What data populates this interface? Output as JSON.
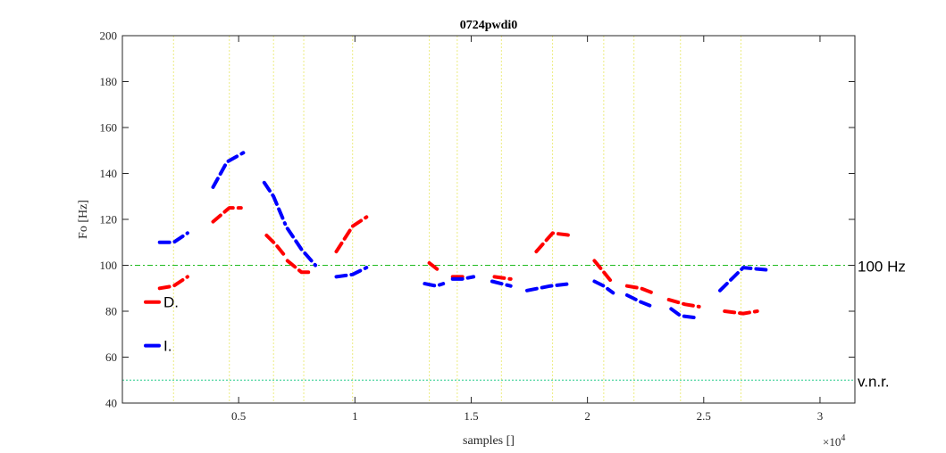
{
  "chart_data": {
    "type": "line",
    "title": "0724pwdi0",
    "xlabel": "samples []",
    "ylabel": "Fo [Hz]",
    "x_exponent_label": "×10",
    "x_exponent_power": "4",
    "xlim": [
      0,
      31500
    ],
    "ylim": [
      40,
      200
    ],
    "xticks": [
      5000,
      10000,
      15000,
      20000,
      25000,
      30000
    ],
    "xtick_labels": [
      "0.5",
      "1",
      "1.5",
      "2",
      "2.5",
      "3"
    ],
    "yticks": [
      40,
      60,
      80,
      100,
      120,
      140,
      160,
      180,
      200
    ],
    "ytick_labels": [
      "40",
      "60",
      "80",
      "100",
      "120",
      "140",
      "160",
      "180",
      "200"
    ],
    "grid": false,
    "reference_lines": [
      {
        "label": "100 Hz",
        "y": 100,
        "color": "#22bb22",
        "style": "dashdot"
      },
      {
        "label": "v.n.r.",
        "y": 50,
        "color": "#22cc88",
        "style": "dotted"
      }
    ],
    "boundaries_x": [
      2200,
      4600,
      6500,
      7800,
      9900,
      13200,
      14400,
      16300,
      18500,
      20700,
      22000,
      24000,
      26600
    ],
    "boundary_color": "#ecec80",
    "legend": {
      "position": "left",
      "entries": [
        {
          "label": "D.",
          "color": "#ff0000",
          "y": 84
        },
        {
          "label": "I.",
          "color": "#0000ff",
          "y": 65
        }
      ]
    },
    "series": [
      {
        "name": "D.",
        "color": "#ff0000",
        "segments": [
          [
            [
              1600,
              90
            ],
            [
              2200,
              91
            ],
            [
              2800,
              95
            ]
          ],
          [
            [
              3900,
              119
            ],
            [
              4600,
              125
            ],
            [
              5100,
              125
            ]
          ],
          [
            [
              6200,
              113
            ],
            [
              6600,
              109
            ],
            [
              7000,
              104
            ]
          ],
          [
            [
              7100,
              102
            ],
            [
              7700,
              97
            ],
            [
              8200,
              97
            ]
          ],
          [
            [
              9200,
              106
            ],
            [
              9900,
              117
            ],
            [
              10500,
              121
            ]
          ],
          [
            [
              13200,
              101
            ],
            [
              13700,
              97
            ]
          ],
          [
            [
              14200,
              95
            ],
            [
              14700,
              95
            ]
          ],
          [
            [
              16000,
              95
            ],
            [
              16700,
              94
            ]
          ],
          [
            [
              17800,
              106
            ],
            [
              18500,
              114
            ],
            [
              19300,
              113
            ]
          ],
          [
            [
              20300,
              102
            ],
            [
              20700,
              97
            ],
            [
              21100,
              92
            ]
          ],
          [
            [
              21700,
              91
            ],
            [
              22300,
              90
            ],
            [
              22800,
              88
            ]
          ],
          [
            [
              23500,
              85
            ],
            [
              24200,
              83
            ],
            [
              24800,
              82
            ]
          ],
          [
            [
              25900,
              80
            ],
            [
              26700,
              79
            ],
            [
              27300,
              80
            ]
          ]
        ]
      },
      {
        "name": "I.",
        "color": "#0000ff",
        "segments": [
          [
            [
              1600,
              110
            ],
            [
              2200,
              110
            ],
            [
              2800,
              114
            ]
          ],
          [
            [
              3900,
              134
            ],
            [
              4500,
              145
            ],
            [
              5200,
              149
            ]
          ],
          [
            [
              6100,
              136
            ],
            [
              6500,
              130
            ],
            [
              7000,
              118
            ]
          ],
          [
            [
              7100,
              116
            ],
            [
              7700,
              107
            ],
            [
              8300,
              100
            ]
          ],
          [
            [
              9200,
              95
            ],
            [
              9900,
              96
            ],
            [
              10500,
              99
            ]
          ],
          [
            [
              13000,
              92
            ],
            [
              13500,
              91
            ],
            [
              13800,
              92
            ]
          ],
          [
            [
              14200,
              94
            ],
            [
              14600,
              94
            ],
            [
              15100,
              95
            ]
          ],
          [
            [
              15900,
              93
            ],
            [
              16700,
              91
            ]
          ],
          [
            [
              17400,
              89
            ],
            [
              18400,
              91
            ],
            [
              19300,
              92
            ]
          ],
          [
            [
              20300,
              93
            ],
            [
              20700,
              91
            ],
            [
              21100,
              88
            ]
          ],
          [
            [
              21700,
              87
            ],
            [
              22300,
              84
            ],
            [
              22800,
              82
            ]
          ],
          [
            [
              23600,
              81
            ],
            [
              24000,
              78
            ],
            [
              24800,
              77
            ]
          ],
          [
            [
              25700,
              89
            ],
            [
              26700,
              99
            ],
            [
              27700,
              98
            ]
          ]
        ]
      }
    ]
  }
}
